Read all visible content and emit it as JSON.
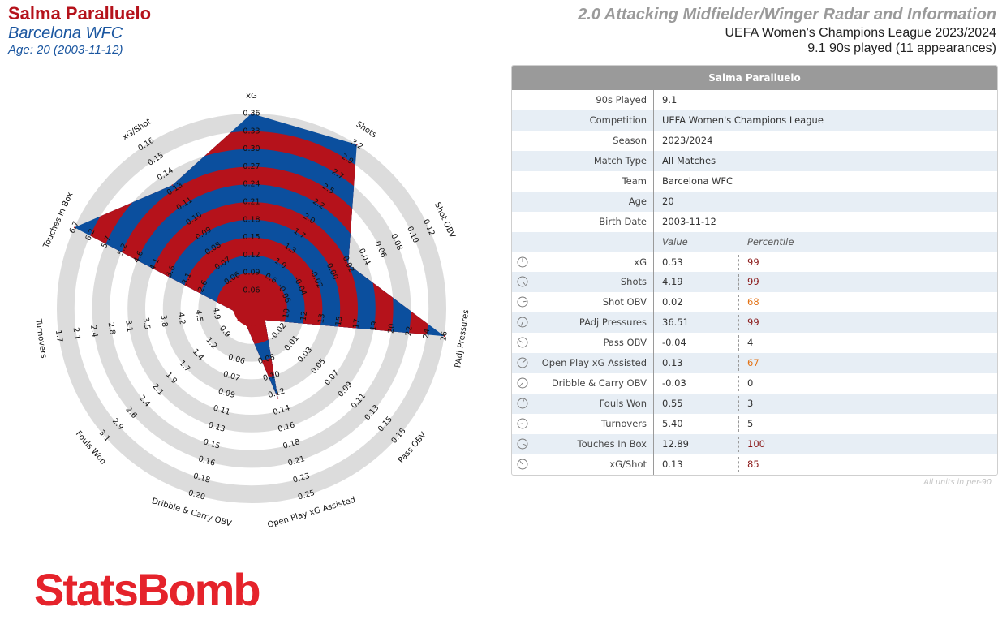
{
  "header": {
    "player_name": "Salma Paralluelo",
    "team": "Barcelona WFC",
    "age_line": "Age: 20 (2003-11-12)",
    "radar_title": "2.0 Attacking Midfielder/Winger Radar and Information",
    "competition_line": "UEFA Women's Champions League 2023/2024",
    "played_line": "9.1 90s played (11 appearances)"
  },
  "colors": {
    "red": "#b5121b",
    "blue": "#0b4f9e",
    "ring_grey": "#dcdcdc",
    "orange": "#e37418",
    "dark_red": "#8b1a1a"
  },
  "chart_data": {
    "type": "radar",
    "series": [
      {
        "values": [
          0.53,
          4.19,
          0.02,
          36.51,
          -0.04,
          0.13,
          -0.03,
          0.55,
          5.4,
          12.89,
          0.13
        ]
      }
    ],
    "axes": [
      {
        "label": "xG",
        "ticks": [
          "0.06",
          "0.09",
          "0.12",
          "0.15",
          "0.18",
          "0.21",
          "0.24",
          "0.27",
          "0.30",
          "0.33",
          "0.36"
        ],
        "min": 0.03,
        "max": 0.36
      },
      {
        "label": "Shots",
        "ticks": [
          "0.6",
          "1.0",
          "1.3",
          "1.7",
          "2.0",
          "2.2",
          "2.5",
          "2.7",
          "2.9",
          "3.2"
        ],
        "min": 0.2,
        "max": 3.2
      },
      {
        "label": "Shot OBV",
        "ticks": [
          "-0.06",
          "-0.04",
          "-0.02",
          "0.00",
          "0.02",
          "0.04",
          "0.06",
          "0.08",
          "0.10",
          "0.12"
        ],
        "min": -0.08,
        "max": 0.12
      },
      {
        "label": "PAdj Pressures",
        "ticks": [
          "10",
          "12",
          "13",
          "15",
          "17",
          "19",
          "20",
          "22",
          "24",
          "26"
        ],
        "min": 8,
        "max": 26
      },
      {
        "label": "Pass OBV",
        "ticks": [
          "-0.02",
          "0.01",
          "0.03",
          "0.05",
          "0.07",
          "0.09",
          "0.11",
          "0.13",
          "0.15",
          "0.18"
        ],
        "min": -0.04,
        "max": 0.18
      },
      {
        "label": "Open Play xG Assisted",
        "ticks": [
          "0.08",
          "0.10",
          "0.12",
          "0.14",
          "0.16",
          "0.18",
          "0.21",
          "0.23",
          "0.25"
        ],
        "min": 0.04,
        "max": 0.25
      },
      {
        "label": "Dribble & Carry OBV",
        "ticks": [
          "0.06",
          "0.07",
          "0.09",
          "0.11",
          "0.13",
          "0.15",
          "0.16",
          "0.18",
          "0.20"
        ],
        "min": 0.04,
        "max": 0.2
      },
      {
        "label": "Fouls Won",
        "ticks": [
          "0.9",
          "1.2",
          "1.4",
          "1.7",
          "1.9",
          "2.1",
          "2.4",
          "2.6",
          "2.9",
          "3.1"
        ],
        "min": 0.6,
        "max": 3.1
      },
      {
        "label": "Turnovers",
        "ticks": [
          "4.9",
          "4.5",
          "4.2",
          "3.8",
          "3.5",
          "3.1",
          "2.8",
          "2.4",
          "2.1",
          "1.7"
        ],
        "min": 5.3,
        "max": 1.7
      },
      {
        "label": "Touches In Box",
        "ticks": [
          "2.6",
          "3.1",
          "3.6",
          "4.1",
          "4.6",
          "5.2",
          "5.7",
          "6.2",
          "6.7"
        ],
        "min": 2.1,
        "max": 6.7
      },
      {
        "label": "xG/Shot",
        "ticks": [
          "0.06",
          "0.07",
          "0.08",
          "0.09",
          "0.10",
          "0.11",
          "0.13",
          "0.14",
          "0.15",
          "0.16"
        ],
        "min": 0.05,
        "max": 0.16
      }
    ],
    "legend": "none"
  },
  "table": {
    "title": "Salma Paralluelo",
    "info_rows": [
      {
        "label": "90s Played",
        "value": "9.1"
      },
      {
        "label": "Competition",
        "value": "UEFA Women's Champions League"
      },
      {
        "label": "Season",
        "value": "2023/2024"
      },
      {
        "label": "Match Type",
        "value": "All Matches"
      },
      {
        "label": "Team",
        "value": "Barcelona WFC"
      },
      {
        "label": "Age",
        "value": "20"
      },
      {
        "label": "Birth Date",
        "value": "2003-11-12"
      }
    ],
    "value_header": "Value",
    "percentile_header": "Percentile",
    "metric_rows": [
      {
        "label": "xG",
        "value": "0.53",
        "percentile": "99",
        "pct_color": "#8b1a1a"
      },
      {
        "label": "Shots",
        "value": "4.19",
        "percentile": "99",
        "pct_color": "#8b1a1a"
      },
      {
        "label": "Shot OBV",
        "value": "0.02",
        "percentile": "68",
        "pct_color": "#e37418"
      },
      {
        "label": "PAdj Pressures",
        "value": "36.51",
        "percentile": "99",
        "pct_color": "#8b1a1a"
      },
      {
        "label": "Pass OBV",
        "value": "-0.04",
        "percentile": "4",
        "pct_color": "#333333"
      },
      {
        "label": "Open Play xG Assisted",
        "value": "0.13",
        "percentile": "67",
        "pct_color": "#e37418"
      },
      {
        "label": "Dribble & Carry OBV",
        "value": "-0.03",
        "percentile": "0",
        "pct_color": "#333333"
      },
      {
        "label": "Fouls Won",
        "value": "0.55",
        "percentile": "3",
        "pct_color": "#333333"
      },
      {
        "label": "Turnovers",
        "value": "5.40",
        "percentile": "5",
        "pct_color": "#333333"
      },
      {
        "label": "Touches In Box",
        "value": "12.89",
        "percentile": "100",
        "pct_color": "#8b1a1a"
      },
      {
        "label": "xG/Shot",
        "value": "0.13",
        "percentile": "85",
        "pct_color": "#8b1a1a"
      }
    ],
    "footnote": "All units in per-90"
  },
  "logo_text": "StatsBomb"
}
